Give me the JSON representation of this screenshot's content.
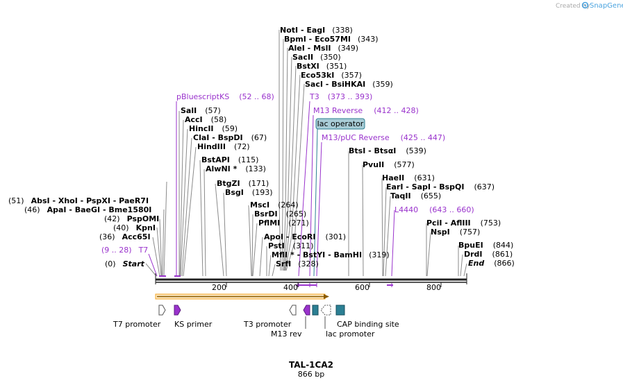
{
  "brand": {
    "created_by": "Created by",
    "app": "SnapGene"
  },
  "title": {
    "name": "TAL-1CA2",
    "length": "866 bp"
  },
  "colors": {
    "feature_purple": "#9932cc",
    "line_gray": "#8a8a8a",
    "teal": "#2b7f93",
    "lac_operator_bg": "#a8ccd6",
    "orf_orange": "#f5a623"
  },
  "axis": {
    "ticks": [
      "200",
      "400",
      "600",
      "800"
    ]
  },
  "sites": [
    {
      "parts": [
        "NotI",
        " - ",
        "EagI"
      ],
      "pos": "(338)"
    },
    {
      "parts": [
        "BpmI",
        " - ",
        "Eco57MI"
      ],
      "pos": "(343)"
    },
    {
      "parts": [
        "AleI",
        " - ",
        "MslI"
      ],
      "pos": "(349)"
    },
    {
      "parts": [
        "SacII"
      ],
      "pos": "(350)"
    },
    {
      "parts": [
        "BstXI"
      ],
      "pos": "(351)"
    },
    {
      "parts": [
        "Eco53kI"
      ],
      "pos": "(357)"
    },
    {
      "parts": [
        "SacI",
        " - ",
        "BsiHKAI"
      ],
      "pos": "(359)"
    },
    {
      "parts": [
        "SalI"
      ],
      "pos": "(57)"
    },
    {
      "parts": [
        "AccI"
      ],
      "pos": "(58)"
    },
    {
      "parts": [
        "HincII"
      ],
      "pos": "(59)"
    },
    {
      "parts": [
        "ClaI",
        " - ",
        "BspDI"
      ],
      "pos": "(67)"
    },
    {
      "parts": [
        "HindIII"
      ],
      "pos": "(72)"
    },
    {
      "parts": [
        "BstAPI"
      ],
      "pos": "(115)"
    },
    {
      "parts": [
        "AlwNI *"
      ],
      "pos": "(133)"
    },
    {
      "parts": [
        "BtgZI"
      ],
      "pos": "(171)"
    },
    {
      "parts": [
        "BsgI"
      ],
      "pos": "(193)"
    },
    {
      "parts": [
        "MscI"
      ],
      "pos": "(264)"
    },
    {
      "parts": [
        "BsrDI"
      ],
      "pos": "(265)"
    },
    {
      "parts": [
        "PflMI"
      ],
      "pos": "(271)"
    },
    {
      "parts": [
        "ApoI",
        " - ",
        "EcoRI"
      ],
      "pos": "(301)"
    },
    {
      "parts": [
        "PstI"
      ],
      "pos": "(311)"
    },
    {
      "parts": [
        "MflI *",
        " - ",
        "BstYI",
        " - ",
        "BamHI"
      ],
      "pos": "(319)"
    },
    {
      "parts": [
        "SrfI"
      ],
      "pos": "(328)"
    },
    {
      "parts": [
        "BtsI",
        " - ",
        "BtsαI"
      ],
      "pos": "(539)"
    },
    {
      "parts": [
        "PvuII"
      ],
      "pos": "(577)"
    },
    {
      "parts": [
        "HaeII"
      ],
      "pos": "(631)"
    },
    {
      "parts": [
        "EarI",
        " - ",
        "SapI",
        " - ",
        "BspQI"
      ],
      "pos": "(637)"
    },
    {
      "parts": [
        "TaqII"
      ],
      "pos": "(655)"
    },
    {
      "parts": [
        "PciI",
        " - ",
        "AflIII"
      ],
      "pos": "(753)"
    },
    {
      "parts": [
        "NspI"
      ],
      "pos": "(757)"
    },
    {
      "parts": [
        "BpuEI"
      ],
      "pos": "(844)"
    },
    {
      "parts": [
        "DrdI"
      ],
      "pos": "(861)"
    },
    {
      "parts": [
        "End"
      ],
      "pos": "(866)"
    },
    {
      "parts": [
        "AbsI",
        " - ",
        "XhoI",
        " - ",
        "PspXI",
        " - ",
        "PaeR7I"
      ],
      "pos": "(51)"
    },
    {
      "parts": [
        "ApaI",
        " - ",
        "BaeGI",
        " - ",
        "Bme1580I"
      ],
      "pos": "(46)"
    },
    {
      "parts": [
        "PspOMI"
      ],
      "pos": "(42)"
    },
    {
      "parts": [
        "KpnI"
      ],
      "pos": "(40)"
    },
    {
      "parts": [
        "Acc65I"
      ],
      "pos": "(36)"
    },
    {
      "parts": [
        "Start"
      ],
      "pos": "(0)"
    }
  ],
  "primers": [
    {
      "name": "pBluescriptKS",
      "range": "(52 .. 68)"
    },
    {
      "name": "T3",
      "range": "(373 .. 393)"
    },
    {
      "name": "M13 Reverse",
      "range": "(412 .. 428)"
    },
    {
      "name": "M13/pUC Reverse",
      "range": "(425 .. 447)"
    },
    {
      "name": "L4440",
      "range": "(643 .. 660)"
    },
    {
      "name": "T7",
      "range": "(9 .. 28)"
    }
  ],
  "lac_operator": "lac operator",
  "features": [
    {
      "label": "T7 promoter"
    },
    {
      "label": "KS primer"
    },
    {
      "label": "T3 promoter"
    },
    {
      "label": "M13 rev"
    },
    {
      "label": "lac promoter"
    },
    {
      "label": "CAP binding site"
    }
  ]
}
